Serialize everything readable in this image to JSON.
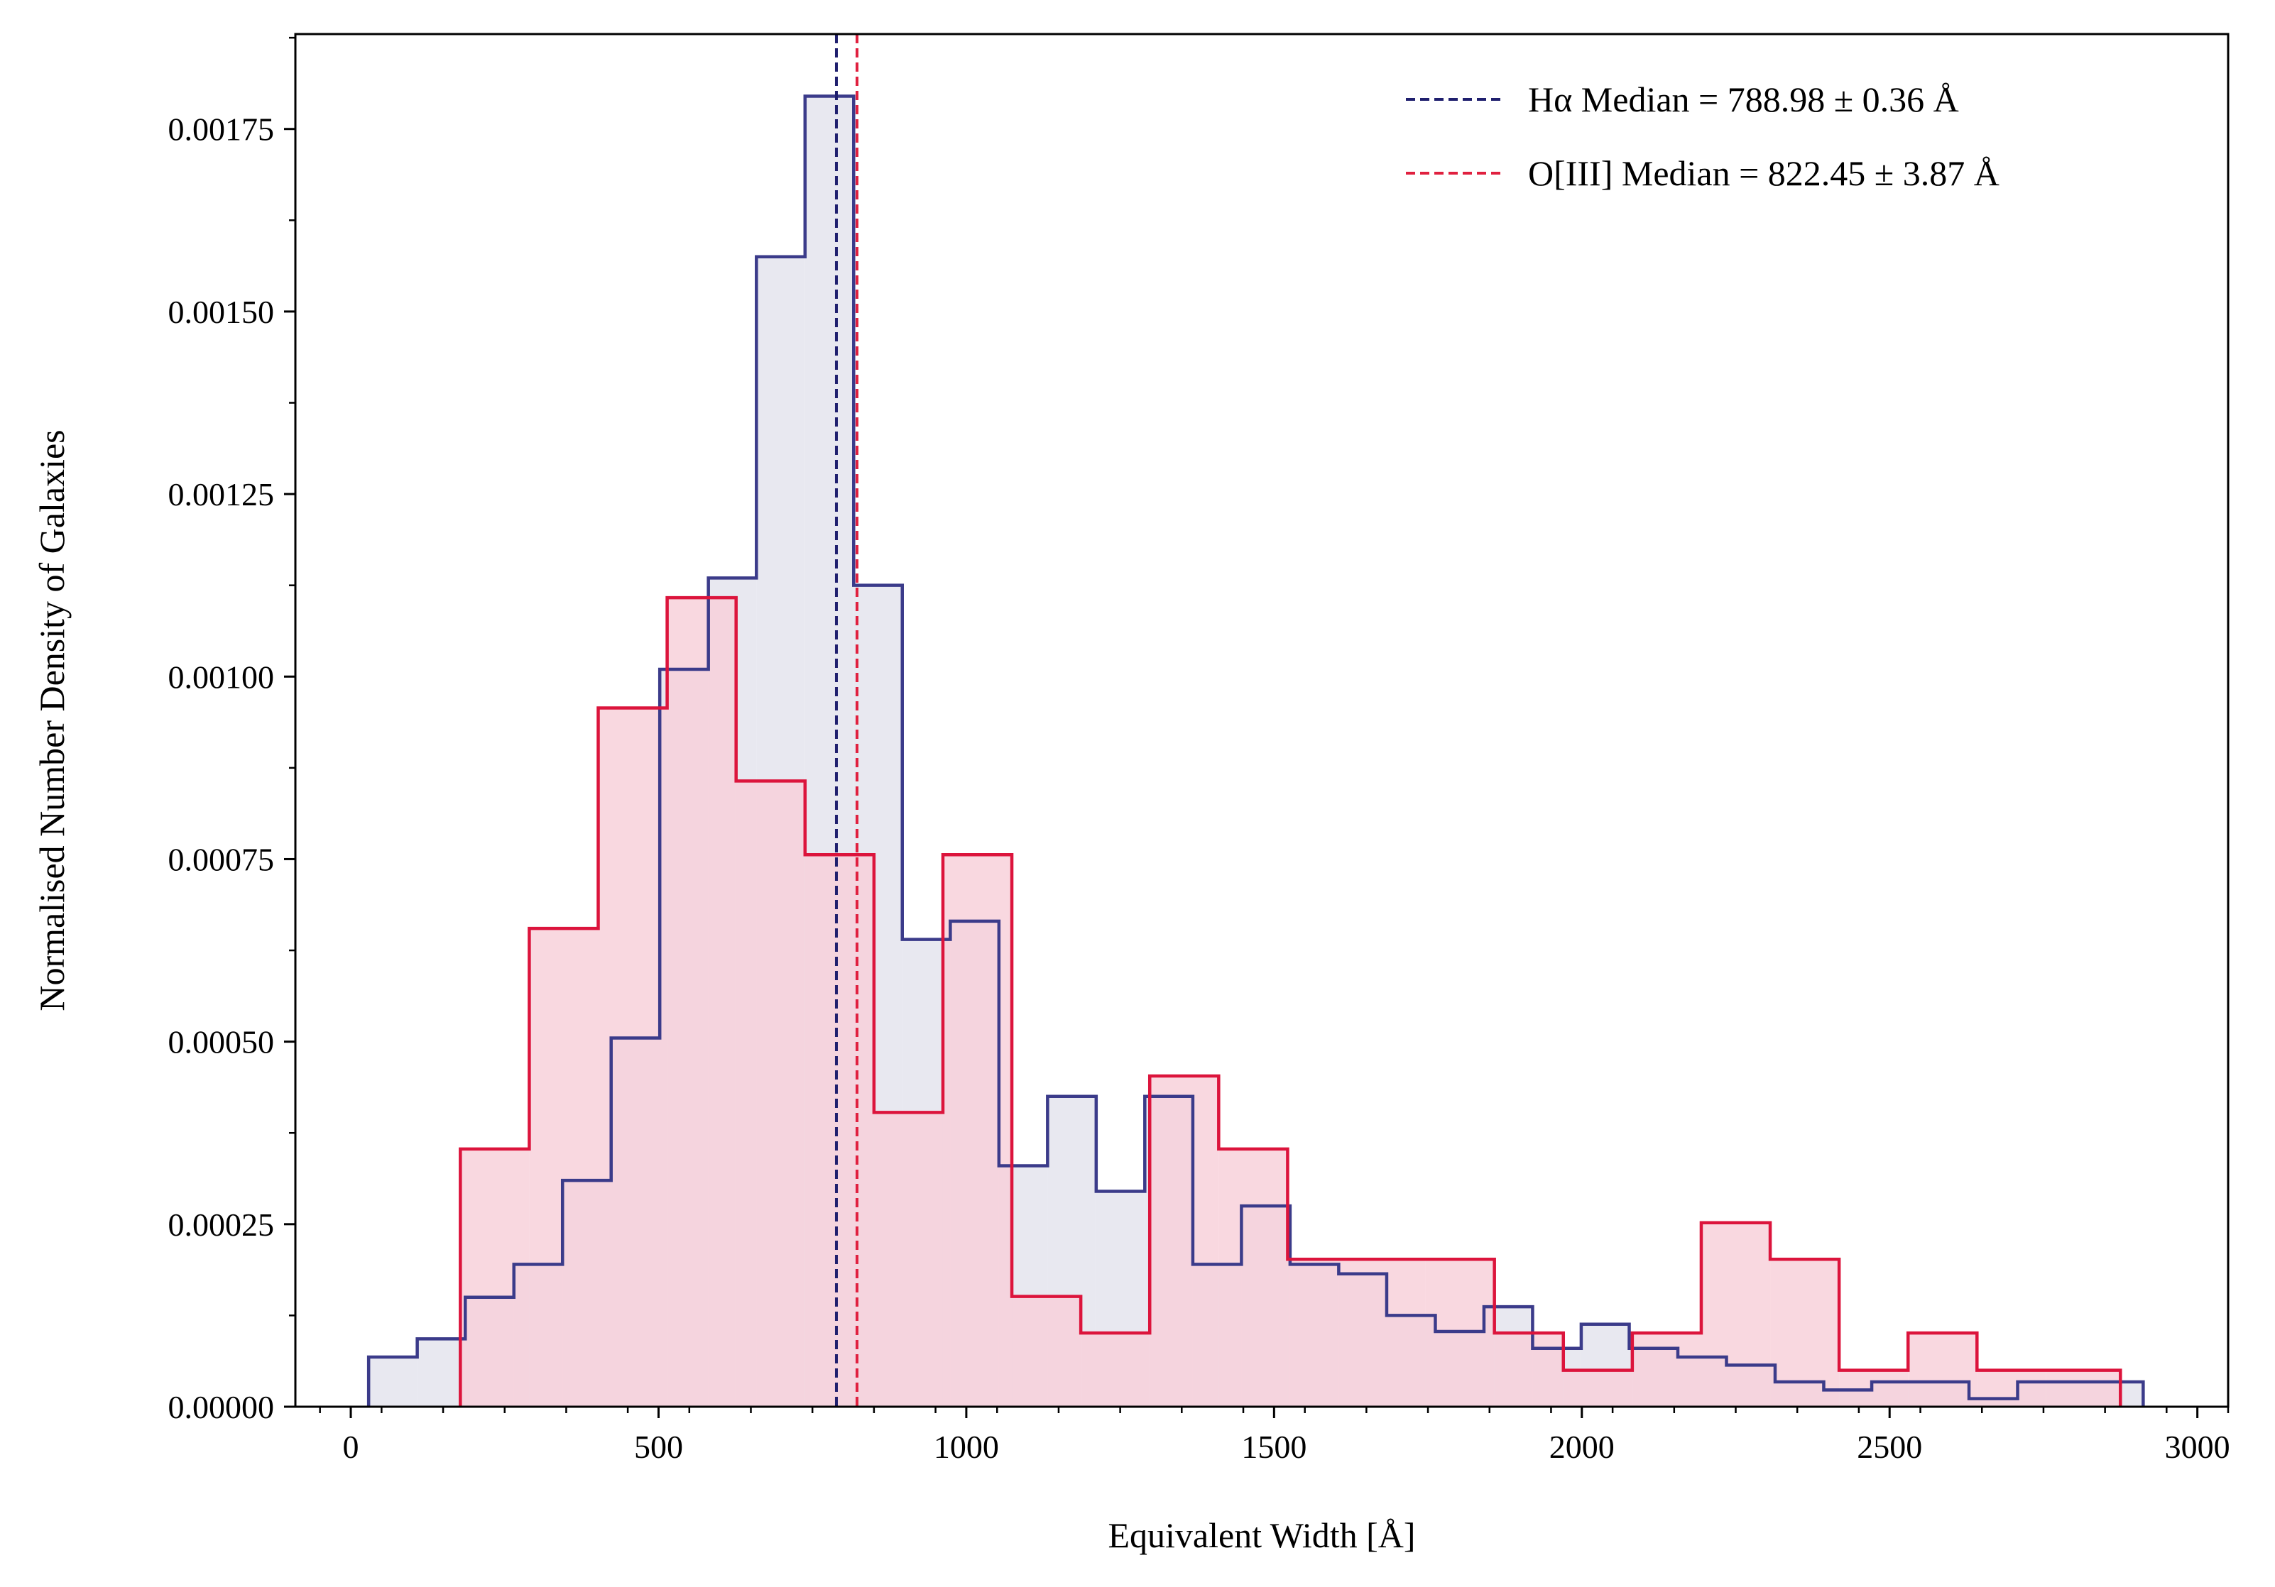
{
  "chart_data": {
    "type": "histogram",
    "title": "",
    "xlabel": "Equivalent Width [Å]",
    "ylabel": "Normalised Number Density of Galaxies",
    "xlim": [
      -90,
      3050
    ],
    "ylim": [
      0,
      0.00188
    ],
    "x_ticks": [
      0,
      500,
      1000,
      1500,
      2000,
      2500,
      3000
    ],
    "x_tick_labels": [
      "0",
      "500",
      "1000",
      "1500",
      "2000",
      "2500",
      "3000"
    ],
    "y_ticks": [
      0,
      0.00025,
      0.0005,
      0.00075,
      0.001,
      0.00125,
      0.0015,
      0.00175
    ],
    "y_tick_labels": [
      "0.00000",
      "0.00025",
      "0.00050",
      "0.00075",
      "0.00100",
      "0.00125",
      "0.00150",
      "0.00175"
    ],
    "grid": false,
    "legend_position": "top-right",
    "series": [
      {
        "name": "Hα",
        "color": "#3b3b8a",
        "fill": "#e8e8f0",
        "bin_edges": [
          29,
          108,
          186,
          265,
          344,
          423,
          502,
          581,
          659,
          738,
          817,
          896,
          974,
          1053,
          1132,
          1211,
          1290,
          1368,
          1447,
          1526,
          1605,
          1683,
          1762,
          1841,
          1920,
          1999,
          2077,
          2156,
          2235,
          2314,
          2393,
          2471,
          2550,
          2629,
          2708,
          2787,
          2866,
          2912
        ],
        "values": [
          6.8e-05,
          9.3e-05,
          0.00015,
          0.000195,
          0.00031,
          0.000505,
          0.00101,
          0.001135,
          0.001575,
          0.001795,
          0.001125,
          0.00064,
          0.000665,
          0.00033,
          0.000425,
          0.000295,
          0.000425,
          0.000195,
          0.000275,
          0.000195,
          0.000182,
          0.000125,
          0.000103,
          0.000137,
          8e-05,
          0.000113,
          8e-05,
          6.8e-05,
          5.7e-05,
          3.4e-05,
          2.3e-05,
          3.4e-05,
          3.4e-05,
          1.1e-05,
          3.4e-05,
          3.4e-05,
          3.4e-05
        ]
      },
      {
        "name": "O[III]",
        "color": "#dc143c",
        "fill": "#f8cfd9",
        "bin_edges": [
          178,
          290,
          402,
          514,
          626,
          738,
          850,
          962,
          1074,
          1186,
          1298,
          1410,
          1522,
          1634,
          1746,
          1858,
          1970,
          2082,
          2194,
          2306,
          2418,
          2530,
          2642,
          2754,
          2875
        ],
        "values": [
          0.000353,
          0.000655,
          0.000957,
          0.001108,
          0.000857,
          0.000756,
          0.000403,
          0.000756,
          0.000151,
          0.000101,
          0.000453,
          0.000353,
          0.000202,
          0.000202,
          0.000202,
          0.000101,
          5e-05,
          0.000101,
          0.000252,
          0.000202,
          5e-05,
          0.000101,
          5e-05,
          5e-05
        ]
      }
    ],
    "median_lines": [
      {
        "value": 788.98,
        "color": "#1f1f6e",
        "label": "Hα Median = 788.98 ± 0.36 Å"
      },
      {
        "value": 822.45,
        "color": "#e0203f",
        "label": "O[III] Median = 822.45 ± 3.87 Å"
      }
    ]
  }
}
